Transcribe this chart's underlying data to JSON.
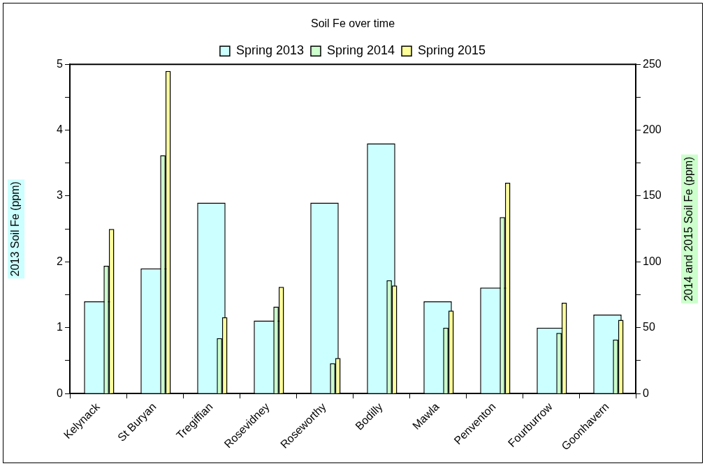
{
  "chart_data": {
    "type": "bar",
    "title": "Soil Fe over time",
    "ylabel": "2013 Soil Fe (ppm)",
    "y2label": "2014 and 2015 Soil Fe (ppm)",
    "categories": [
      "Kelynack",
      "St Buryan",
      "Tregiffian",
      "Rosevidney",
      "Roseworthy",
      "Bodilly",
      "Mawla",
      "Penventon",
      "Fourburrow",
      "Goonhavern"
    ],
    "series": [
      {
        "name": "Spring 2013",
        "color": "#ccffff",
        "values": [
          1.4,
          1.9,
          2.9,
          1.11,
          2.9,
          3.8,
          1.4,
          1.61,
          1.0,
          1.2
        ]
      },
      {
        "name": "Spring 2014",
        "color": "#ccffcc",
        "axis": "y2",
        "values": [
          97,
          181,
          42,
          66,
          23,
          86,
          50,
          134,
          46,
          41
        ]
      },
      {
        "name": "Spring 2015",
        "color": "#ffff99",
        "axis": "y2",
        "values": [
          125,
          245,
          58,
          81,
          27,
          82,
          63,
          160,
          69,
          56
        ]
      }
    ],
    "ylim": [
      0,
      5
    ],
    "yticks": [
      0,
      {
        "value": 0.5,
        "label": null
      },
      1,
      {
        "value": 1.5,
        "label": null
      },
      2,
      {
        "value": 2.5,
        "label": null
      },
      3,
      {
        "value": 3.5,
        "label": null
      },
      4,
      {
        "value": 4.5,
        "label": null
      },
      5
    ],
    "y2lim": [
      0,
      250
    ],
    "y2ticks": [
      0,
      {
        "value": 25,
        "label": null
      },
      50,
      {
        "value": 75,
        "label": null
      },
      100,
      {
        "value": 125,
        "label": null
      },
      150,
      {
        "value": 175,
        "label": null
      },
      200,
      {
        "value": 225,
        "label": null
      },
      250
    ],
    "grid": false,
    "legend": "top"
  }
}
